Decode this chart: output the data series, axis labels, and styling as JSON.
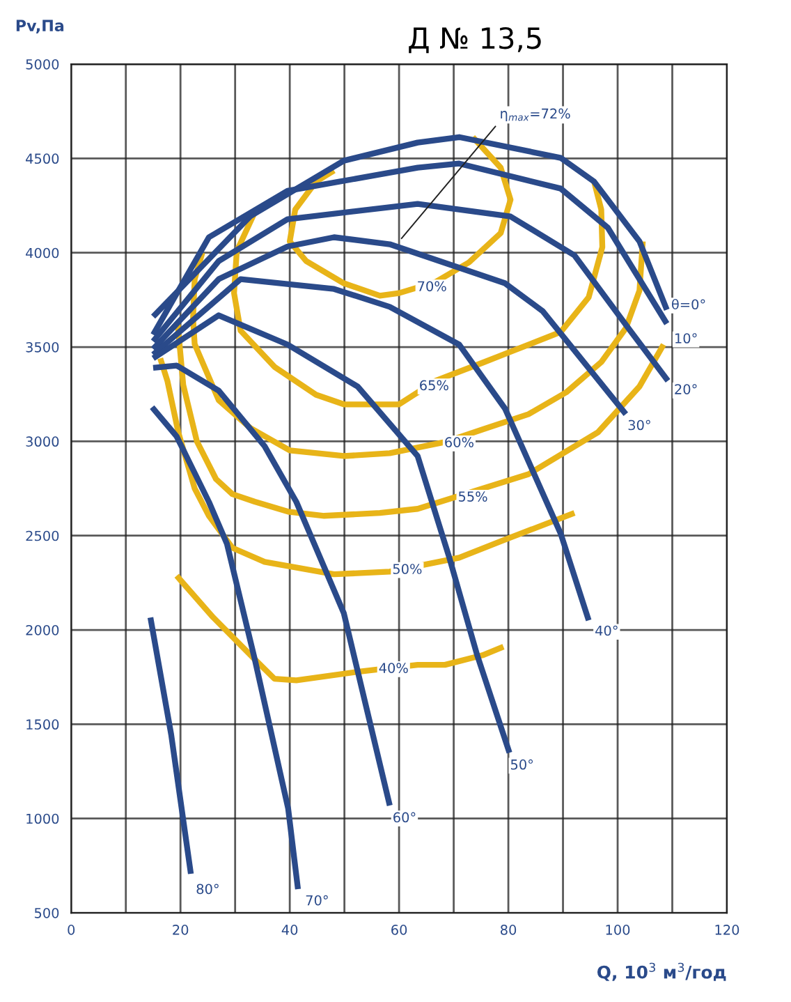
{
  "chart_data": {
    "type": "line",
    "title": "Д № 13,5",
    "xlabel": "Q, 10$^{3}$ м$^{3}$/год",
    "ylabel": "Pv,Па",
    "xlim": [
      0,
      120
    ],
    "ylim": [
      500,
      5000
    ],
    "xticks": [
      0,
      {
        "value": 10,
        "label": null
      },
      20,
      {
        "value": 30,
        "label": null
      },
      40,
      {
        "value": 50,
        "label": null
      },
      60,
      {
        "value": 70,
        "label": null
      },
      80,
      {
        "value": 90,
        "label": null
      },
      100,
      {
        "value": 110,
        "label": null
      },
      120
    ],
    "yticks": [
      500,
      1000,
      1500,
      2000,
      2500,
      3000,
      3500,
      4000,
      4500,
      5000
    ],
    "grid": true,
    "legend": false,
    "marker": "none",
    "line_style": "solid",
    "series": [
      {
        "color": "#e8b418",
        "x": [
          48.1,
          44.8,
          41,
          40,
          43,
          49.9,
          56.5,
          60,
          66.7,
          72.8,
          78.6,
          80.4,
          78.6,
          73.5
        ],
        "values": [
          4436,
          4377,
          4229,
          4060,
          3956,
          3838,
          3772,
          3786,
          3845,
          3949,
          4104,
          4281,
          4451,
          4613
        ]
      },
      {
        "color": "#e8b418",
        "x": [
          33.6,
          30.3,
          29.8,
          31,
          37.2,
          44.8,
          49.9,
          60,
          66.7,
          75.3,
          89.6,
          94.7,
          97.2,
          97,
          95.7
        ],
        "values": [
          4215,
          4008,
          3786,
          3587,
          3395,
          3247,
          3196,
          3196,
          3321,
          3417,
          3580,
          3764,
          4030,
          4229,
          4377
        ]
      },
      {
        "color": "#e8b418",
        "x": [
          24,
          22.6,
          22.3,
          22.6,
          27,
          32.8,
          40,
          49.9,
          58.3,
          68.4,
          75.3,
          83.7,
          90.6,
          97,
          101.5,
          104,
          104.6
        ],
        "values": [
          4000,
          3860,
          3652,
          3515,
          3218,
          3070,
          2952,
          2922,
          2937,
          2996,
          3063,
          3144,
          3260,
          3420,
          3600,
          3800,
          4060
        ]
      },
      {
        "color": "#e8b418",
        "x": [
          19.5,
          20.5,
          23,
          26.5,
          29.5,
          33.6,
          39.7,
          46.3,
          56.5,
          63.4,
          83.7,
          96.4,
          104,
          108.4
        ],
        "values": [
          3620,
          3300,
          3000,
          2800,
          2720,
          2680,
          2627,
          2605,
          2620,
          2642,
          2826,
          3048,
          3291,
          3513
        ]
      },
      {
        "color": "#e8b418",
        "x": [
          16.3,
          17.6,
          19.6,
          22.6,
          25.2,
          29.5,
          35.4,
          48.1,
          58.3,
          71,
          79.4,
          92.1
        ],
        "values": [
          3440,
          3321,
          3048,
          2750,
          2605,
          2435,
          2361,
          2295,
          2309,
          2383,
          2479,
          2620
        ]
      },
      {
        "color": "#e8b418",
        "x": [
          19.3,
          26,
          33.6,
          37.2,
          41.2,
          52.4,
          63.4,
          68.4,
          75.3,
          79.1
        ],
        "values": [
          2287,
          2066,
          1844,
          1741,
          1733,
          1778,
          1815,
          1815,
          1866,
          1911
        ]
      },
      {
        "color": "#2a4a8a",
        "x": [
          15,
          32.8,
          49.9,
          63.4,
          71,
          89.6,
          95.7,
          104,
          109
        ],
        "values": [
          3661,
          4194,
          4488,
          4584,
          4613,
          4503,
          4377,
          4060,
          3698
        ]
      },
      {
        "color": "#2a4a8a",
        "x": [
          15,
          25.2,
          39.6,
          63.4,
          71,
          89.6,
          98.2,
          109
        ],
        "values": [
          3565,
          4082,
          4328,
          4451,
          4473,
          4340,
          4133,
          3624
        ]
      },
      {
        "color": "#2a4a8a",
        "x": [
          15,
          27,
          39.6,
          63.4,
          80.4,
          92.1,
          102.3,
          109.2
        ],
        "values": [
          3530,
          3956,
          4178,
          4259,
          4192,
          3986,
          3587,
          3321
        ]
      },
      {
        "color": "#2a4a8a",
        "x": [
          15,
          27,
          39.6,
          48.1,
          58.3,
          79.4,
          86.3,
          101.5
        ],
        "values": [
          3490,
          3860,
          4033,
          4082,
          4045,
          3838,
          3690,
          3144
        ]
      },
      {
        "color": "#2a4a8a",
        "x": [
          15,
          31,
          48.1,
          58.3,
          71,
          79.4,
          89.6,
          94.7
        ],
        "values": [
          3460,
          3860,
          3808,
          3713,
          3513,
          3173,
          2509,
          2051
        ]
      },
      {
        "color": "#2a4a8a",
        "x": [
          15,
          27,
          39.6,
          52.4,
          63.4,
          69.2,
          74.3,
          80.2
        ],
        "values": [
          3440,
          3668,
          3513,
          3291,
          2922,
          2383,
          1866,
          1349
        ]
      },
      {
        "color": "#2a4a8a",
        "x": [
          15,
          19.3,
          27,
          35.4,
          41.2,
          49.9,
          58.3
        ],
        "values": [
          3390,
          3402,
          3269,
          2974,
          2679,
          2088,
          1069
        ]
      },
      {
        "color": "#2a4a8a",
        "x": [
          14.8,
          19.3,
          25.2,
          28.5,
          33.6,
          39.7,
          41.5
        ],
        "values": [
          3181,
          3026,
          2679,
          2457,
          1844,
          1054,
          626
        ]
      },
      {
        "color": "#2a4a8a",
        "x": [
          14.5,
          18.3,
          21.9
        ],
        "values": [
          2066,
          1445,
          707
        ]
      }
    ],
    "annotations": [
      {
        "text": "η$_{max}$=72%",
        "x": 60,
        "y": 4060
      },
      {
        "text": "θ=0°",
        "x": 113,
        "y": 3720
      },
      {
        "text": "10°",
        "x": 112.5,
        "y": 3540
      },
      {
        "text": "20°",
        "x": 112.5,
        "y": 3270
      },
      {
        "text": "30°",
        "x": 104,
        "y": 3080
      },
      {
        "text": "40°",
        "x": 98,
        "y": 1990
      },
      {
        "text": "50°",
        "x": 82.5,
        "y": 1280
      },
      {
        "text": "60°",
        "x": 61,
        "y": 1000
      },
      {
        "text": "70°",
        "x": 45,
        "y": 560
      },
      {
        "text": "80°",
        "x": 25,
        "y": 620
      },
      {
        "text": "70%",
        "x": 66,
        "y": 3816
      },
      {
        "text": "65%",
        "x": 66.4,
        "y": 3291
      },
      {
        "text": "60%",
        "x": 71,
        "y": 2989
      },
      {
        "text": "55%",
        "x": 73.5,
        "y": 2701
      },
      {
        "text": "50%",
        "x": 61.5,
        "y": 2317
      },
      {
        "text": "40%",
        "x": 59,
        "y": 1792
      }
    ]
  }
}
